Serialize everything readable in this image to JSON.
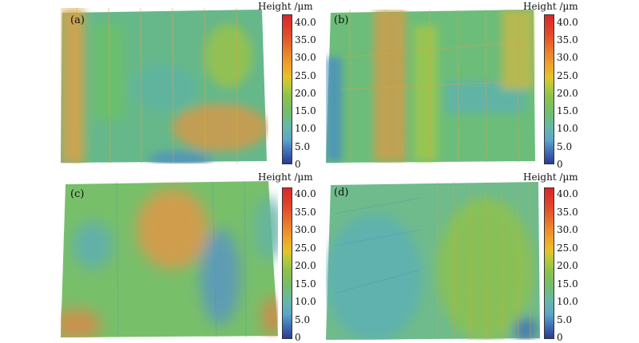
{
  "panels": [
    {
      "label": "(a)",
      "scale_title": "Height /µm",
      "ticks": [
        "40.0",
        "35.0",
        "30.0",
        "25.0",
        "20.0",
        "15.0",
        "10.0",
        "5.0",
        "0"
      ]
    },
    {
      "label": "(b)",
      "scale_title": "Height /µm",
      "ticks": [
        "40.0",
        "35.0",
        "30.0",
        "25.0",
        "20.0",
        "15.0",
        "10.0",
        "5.0",
        "0"
      ]
    },
    {
      "label": "(c)",
      "scale_title": "Height /µm",
      "ticks": [
        "40.0",
        "35.0",
        "30.0",
        "25.0",
        "20.0",
        "15.0",
        "10.0",
        "5.0",
        "0"
      ]
    },
    {
      "label": "(d)",
      "scale_title": "Height /µm",
      "ticks": [
        "40.0",
        "35.0",
        "30.0",
        "25.0",
        "20.0",
        "15.0",
        "10.0",
        "5.0",
        "0"
      ]
    }
  ],
  "colors": {
    "low": "#2b3b8f",
    "mid_low": "#5aa6c9",
    "mid": "#74bd6a",
    "mid_high": "#e6c227",
    "high": "#d9262a"
  }
}
